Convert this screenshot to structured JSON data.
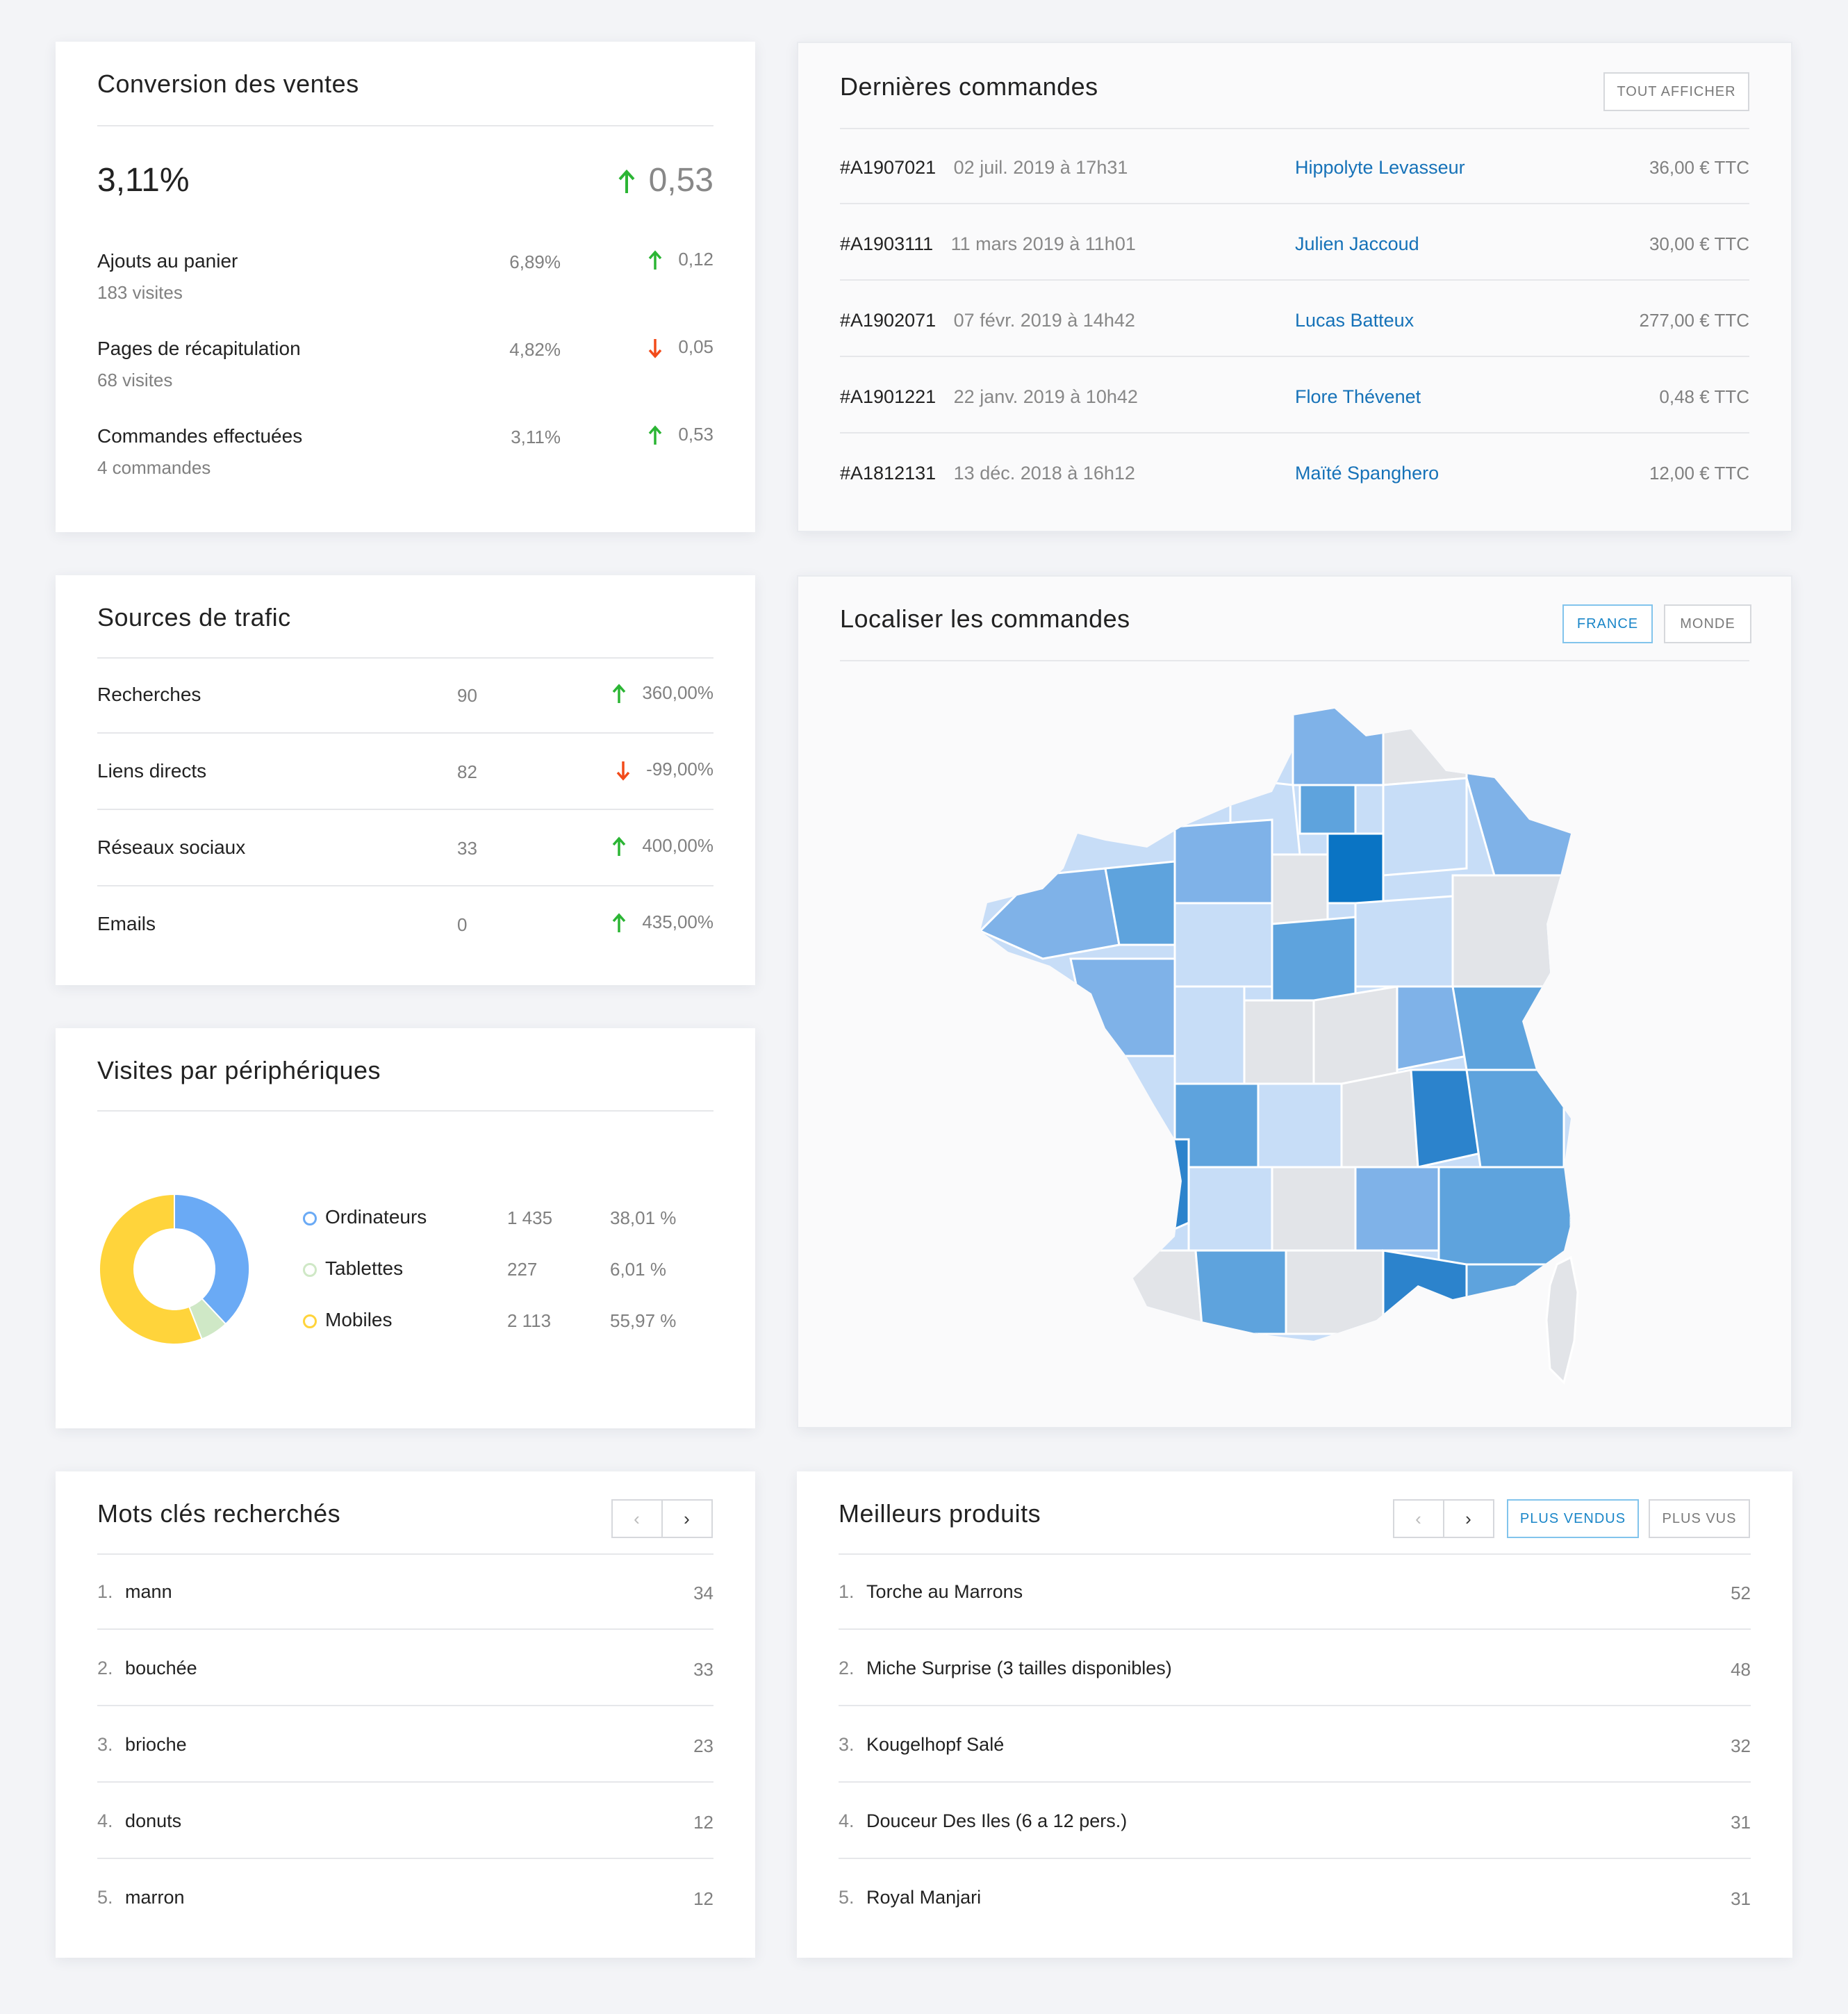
{
  "conversion": {
    "title": "Conversion des ventes",
    "rate": "3,11%",
    "delta": "0,53",
    "rows": [
      {
        "label": "Ajouts au panier",
        "sub": "183 visites",
        "pct": "6,89%",
        "delta": "0,12",
        "trend": "up"
      },
      {
        "label": "Pages de récapitulation",
        "sub": "68 visites",
        "pct": "4,82%",
        "delta": "0,05",
        "trend": "down"
      },
      {
        "label": "Commandes effectuées",
        "sub": "4 commandes",
        "pct": "3,11%",
        "delta": "0,53",
        "trend": "up"
      }
    ]
  },
  "orders": {
    "title": "Dernières commandes",
    "view_all": "TOUT AFFICHER",
    "rows": [
      {
        "id": "#A1907021",
        "date": "02 juil. 2019 à 17h31",
        "customer": "Hippolyte Levasseur",
        "amount": "36,00 € TTC"
      },
      {
        "id": "#A1903111",
        "date": "11 mars 2019 à 11h01",
        "customer": "Julien Jaccoud",
        "amount": "30,00 € TTC"
      },
      {
        "id": "#A1902071",
        "date": "07 févr. 2019 à 14h42",
        "customer": "Lucas Batteux",
        "amount": "277,00 € TTC"
      },
      {
        "id": "#A1901221",
        "date": "22 janv. 2019 à 10h42",
        "customer": "Flore Thévenet",
        "amount": "0,48 € TTC"
      },
      {
        "id": "#A1812131",
        "date": "13 déc. 2018 à 16h12",
        "customer": "Maïté Spanghero",
        "amount": "12,00 € TTC"
      }
    ]
  },
  "traffic": {
    "title": "Sources de trafic",
    "rows": [
      {
        "label": "Recherches",
        "count": "90",
        "change": "360,00%",
        "trend": "up"
      },
      {
        "label": "Liens directs",
        "count": "82",
        "change": "-99,00%",
        "trend": "down"
      },
      {
        "label": "Réseaux sociaux",
        "count": "33",
        "change": "400,00%",
        "trend": "up"
      },
      {
        "label": "Emails",
        "count": "0",
        "change": "435,00%",
        "trend": "up"
      }
    ]
  },
  "map": {
    "title": "Localiser les commandes",
    "tab_france": "FRANCE",
    "tab_world": "MONDE",
    "active_tab": "FRANCE"
  },
  "devices": {
    "title": "Visites par périphériques",
    "rows": [
      {
        "label": "Ordinateurs",
        "count": "1 435",
        "pct": "38,01 %",
        "color": "#6aaaf5"
      },
      {
        "label": "Tablettes",
        "count": "227",
        "pct": "6,01 %",
        "color": "#cfe8c6"
      },
      {
        "label": "Mobiles",
        "count": "2 113",
        "pct": "55,97 %",
        "color": "#ffd43b"
      }
    ]
  },
  "keywords": {
    "title": "Mots clés recherchés",
    "prev_icon": "chevron-left-icon",
    "next_icon": "chevron-right-icon",
    "rows": [
      {
        "rank": "1.",
        "label": "mann",
        "count": "34"
      },
      {
        "rank": "2.",
        "label": "bouchée",
        "count": "33"
      },
      {
        "rank": "3.",
        "label": "brioche",
        "count": "23"
      },
      {
        "rank": "4.",
        "label": "donuts",
        "count": "12"
      },
      {
        "rank": "5.",
        "label": "marron",
        "count": "12"
      }
    ]
  },
  "products": {
    "title": "Meilleurs produits",
    "tab_sold": "PLUS VENDUS",
    "tab_viewed": "PLUS VUS",
    "active_tab": "PLUS VENDUS",
    "rows": [
      {
        "rank": "1.",
        "label": "Torche au Marrons",
        "count": "52"
      },
      {
        "rank": "2.",
        "label": "Miche Surprise (3 tailles disponibles)",
        "count": "48"
      },
      {
        "rank": "3.",
        "label": "Kougelhopf Salé",
        "count": "32"
      },
      {
        "rank": "4.",
        "label": "Douceur Des Iles (6 a 12 pers.)",
        "count": "31"
      },
      {
        "rank": "5.",
        "label": "Royal Manjari",
        "count": "31"
      }
    ]
  },
  "colors": {
    "up": "#2bb534",
    "down": "#f24b1a",
    "link": "#1672b8",
    "map_strong": "#0a74c4",
    "map_mid": "#5ea3dd",
    "map_light": "#c7ddf7",
    "map_none": "#e2e4e8"
  }
}
